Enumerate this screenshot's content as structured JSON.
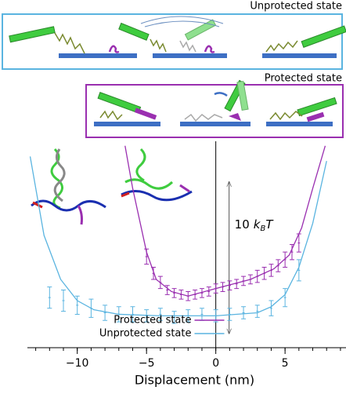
{
  "diagrams": [
    {
      "title": "Unprotected state"
    },
    {
      "title": "Protected state"
    }
  ],
  "chart_data": {
    "type": "line",
    "x_label": "Displacement (nm)",
    "xlim": [
      -13.6,
      9.4
    ],
    "ylim": [
      -2.1,
      11.5
    ],
    "xticks": [
      {
        "value": -10,
        "label": "−10"
      },
      {
        "value": -5,
        "label": "−5"
      },
      0,
      5
    ],
    "xminorticks": [
      -13,
      -12,
      -11,
      -10,
      -9,
      -8,
      -7,
      -6,
      -5,
      -4,
      -3,
      -2,
      -1,
      0,
      1,
      2,
      3,
      4,
      5,
      6,
      7,
      8,
      9
    ],
    "vline": 0,
    "legend": "lower center",
    "scale_bar": {
      "value": 10,
      "unit": [
        "k",
        "B",
        "T"
      ]
    },
    "series": [
      {
        "name": "Protected state",
        "color": "#9a2fb0",
        "fit_x": [
          -6.55,
          -6,
          -5,
          -4.3,
          -3.2,
          -2,
          0,
          2.5,
          4.2,
          5.3,
          6.2,
          7,
          7.9
        ],
        "fit": [
          11.2,
          8.4,
          4.2,
          2.4,
          1.6,
          1.3,
          1.8,
          2.4,
          3.1,
          4.0,
          5.8,
          8.4,
          11.2
        ],
        "x": [
          -5,
          -4.5,
          -4,
          -3.5,
          -3,
          -2.5,
          -2,
          -1.5,
          -1,
          -0.5,
          0,
          0.5,
          1,
          1.5,
          2,
          2.5,
          3,
          3.5,
          4,
          4.5,
          5,
          5.5,
          6
        ],
        "values": [
          3.9,
          2.8,
          2.2,
          1.7,
          1.5,
          1.4,
          1.3,
          1.4,
          1.5,
          1.6,
          1.8,
          1.9,
          2.0,
          2.1,
          2.3,
          2.4,
          2.6,
          2.8,
          3.0,
          3.3,
          3.7,
          4.2,
          4.8
        ],
        "errors": [
          0.5,
          0.4,
          0.4,
          0.3,
          0.3,
          0.3,
          0.3,
          0.3,
          0.3,
          0.3,
          0.3,
          0.3,
          0.3,
          0.3,
          0.3,
          0.3,
          0.4,
          0.4,
          0.4,
          0.4,
          0.5,
          0.5,
          0.6
        ]
      },
      {
        "name": "Unprotected state",
        "color": "#5ab4e0",
        "fit_x": [
          -13.4,
          -12.4,
          -11.2,
          -10,
          -8.8,
          -7,
          -4,
          0,
          3,
          4,
          5,
          6,
          7,
          8
        ],
        "fit": [
          10.5,
          5.3,
          2.4,
          1.0,
          0.4,
          0.1,
          0,
          0,
          0.2,
          0.6,
          1.4,
          3.2,
          6.1,
          10.2
        ],
        "x": [
          -12,
          -11,
          -10,
          -9,
          -8,
          -7,
          -6,
          -5,
          -4,
          -3,
          -2,
          -1,
          0,
          1,
          2,
          3,
          4,
          5,
          6
        ],
        "values": [
          1.2,
          1.0,
          0.7,
          0.5,
          0.2,
          0.1,
          0.1,
          0,
          0.1,
          -0.1,
          0,
          0.1,
          0,
          0.1,
          0.2,
          0.3,
          0.5,
          1.2,
          3.0
        ],
        "errors": [
          0.7,
          0.7,
          0.6,
          0.6,
          0.5,
          0.5,
          0.5,
          0.4,
          0.4,
          0.4,
          0.4,
          0.4,
          0.4,
          0.4,
          0.4,
          0.4,
          0.5,
          0.6,
          0.7
        ]
      }
    ]
  }
}
